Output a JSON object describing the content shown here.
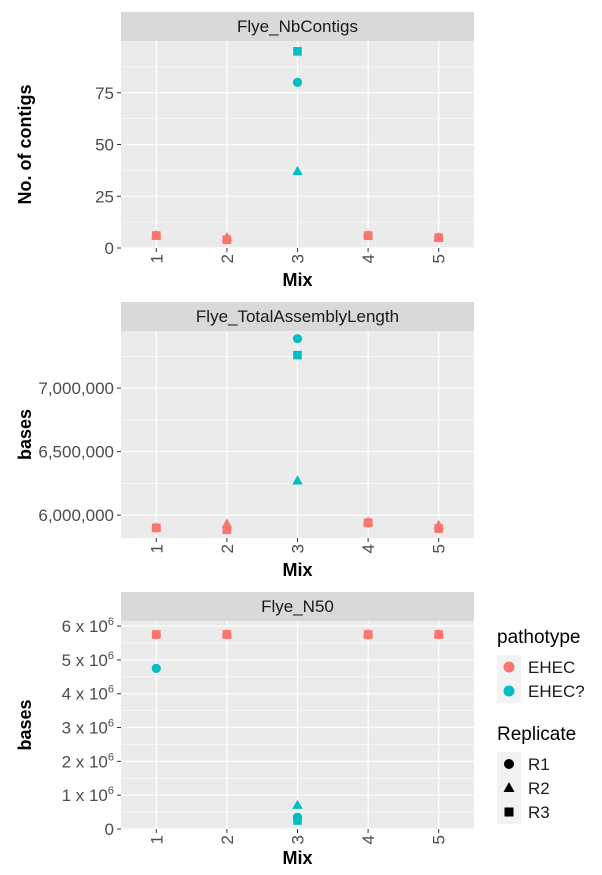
{
  "chart_data": [
    {
      "type": "scatter",
      "title": "Flye_NbContigs",
      "xlabel": "Mix",
      "ylabel": "No. of contigs",
      "x_categories": [
        "1",
        "2",
        "3",
        "4",
        "5"
      ],
      "ylim": [
        0,
        100
      ],
      "y_ticks": [
        0,
        25,
        50,
        75
      ],
      "y_tick_labels": [
        "0",
        "25",
        "50",
        "75"
      ],
      "grid": true,
      "points": [
        {
          "x": "1",
          "y": 6,
          "pathotype": "EHEC",
          "replicate": "R1"
        },
        {
          "x": "1",
          "y": 6,
          "pathotype": "EHEC",
          "replicate": "R2"
        },
        {
          "x": "1",
          "y": 6,
          "pathotype": "EHEC",
          "replicate": "R3"
        },
        {
          "x": "2",
          "y": 4,
          "pathotype": "EHEC",
          "replicate": "R1"
        },
        {
          "x": "2",
          "y": 5,
          "pathotype": "EHEC",
          "replicate": "R2"
        },
        {
          "x": "2",
          "y": 4,
          "pathotype": "EHEC",
          "replicate": "R3"
        },
        {
          "x": "3",
          "y": 80,
          "pathotype": "EHEC?",
          "replicate": "R1"
        },
        {
          "x": "3",
          "y": 37,
          "pathotype": "EHEC?",
          "replicate": "R2"
        },
        {
          "x": "3",
          "y": 95,
          "pathotype": "EHEC?",
          "replicate": "R3"
        },
        {
          "x": "4",
          "y": 6,
          "pathotype": "EHEC",
          "replicate": "R1"
        },
        {
          "x": "4",
          "y": 6,
          "pathotype": "EHEC",
          "replicate": "R2"
        },
        {
          "x": "4",
          "y": 6,
          "pathotype": "EHEC",
          "replicate": "R3"
        },
        {
          "x": "5",
          "y": 5,
          "pathotype": "EHEC",
          "replicate": "R1"
        },
        {
          "x": "5",
          "y": 5,
          "pathotype": "EHEC",
          "replicate": "R2"
        },
        {
          "x": "5",
          "y": 5,
          "pathotype": "EHEC",
          "replicate": "R3"
        }
      ]
    },
    {
      "type": "scatter",
      "title": "Flye_TotalAssemblyLength",
      "xlabel": "Mix",
      "ylabel": "bases",
      "x_categories": [
        "1",
        "2",
        "3",
        "4",
        "5"
      ],
      "ylim": [
        5820000,
        7450000
      ],
      "y_ticks": [
        6000000,
        6500000,
        7000000
      ],
      "y_tick_labels": [
        "6,000,000",
        "6,500,000",
        "7,000,000"
      ],
      "grid": true,
      "points": [
        {
          "x": "1",
          "y": 5900000,
          "pathotype": "EHEC",
          "replicate": "R1"
        },
        {
          "x": "1",
          "y": 5900000,
          "pathotype": "EHEC",
          "replicate": "R2"
        },
        {
          "x": "1",
          "y": 5900000,
          "pathotype": "EHEC",
          "replicate": "R3"
        },
        {
          "x": "2",
          "y": 5885000,
          "pathotype": "EHEC",
          "replicate": "R1"
        },
        {
          "x": "2",
          "y": 5930000,
          "pathotype": "EHEC",
          "replicate": "R2"
        },
        {
          "x": "2",
          "y": 5885000,
          "pathotype": "EHEC",
          "replicate": "R3"
        },
        {
          "x": "3",
          "y": 7390000,
          "pathotype": "EHEC?",
          "replicate": "R1"
        },
        {
          "x": "3",
          "y": 6270000,
          "pathotype": "EHEC?",
          "replicate": "R2"
        },
        {
          "x": "3",
          "y": 7260000,
          "pathotype": "EHEC?",
          "replicate": "R3"
        },
        {
          "x": "4",
          "y": 5940000,
          "pathotype": "EHEC",
          "replicate": "R1"
        },
        {
          "x": "4",
          "y": 5945000,
          "pathotype": "EHEC",
          "replicate": "R2"
        },
        {
          "x": "4",
          "y": 5940000,
          "pathotype": "EHEC",
          "replicate": "R3"
        },
        {
          "x": "5",
          "y": 5895000,
          "pathotype": "EHEC",
          "replicate": "R1"
        },
        {
          "x": "5",
          "y": 5920000,
          "pathotype": "EHEC",
          "replicate": "R2"
        },
        {
          "x": "5",
          "y": 5895000,
          "pathotype": "EHEC",
          "replicate": "R3"
        }
      ]
    },
    {
      "type": "scatter",
      "title": "Flye_N50",
      "xlabel": "Mix",
      "ylabel": "bases",
      "x_categories": [
        "1",
        "2",
        "3",
        "4",
        "5"
      ],
      "ylim": [
        0,
        6150000
      ],
      "y_ticks": [
        0,
        1000000,
        2000000,
        3000000,
        4000000,
        5000000,
        6000000
      ],
      "y_tick_labels": [
        {
          "base": "0",
          "exp": ""
        },
        {
          "base": "1 x 10",
          "exp": "6"
        },
        {
          "base": "2 x 10",
          "exp": "6"
        },
        {
          "base": "3 x 10",
          "exp": "6"
        },
        {
          "base": "4 x 10",
          "exp": "6"
        },
        {
          "base": "5 x 10",
          "exp": "6"
        },
        {
          "base": "6 x 10",
          "exp": "6"
        }
      ],
      "grid": true,
      "points": [
        {
          "x": "1",
          "y": 5750000,
          "pathotype": "EHEC",
          "replicate": "R1"
        },
        {
          "x": "1",
          "y": 4750000,
          "pathotype": "EHEC?",
          "replicate": "R1"
        },
        {
          "x": "1",
          "y": 5750000,
          "pathotype": "EHEC",
          "replicate": "R3"
        },
        {
          "x": "2",
          "y": 5750000,
          "pathotype": "EHEC",
          "replicate": "R1"
        },
        {
          "x": "2",
          "y": 5760000,
          "pathotype": "EHEC",
          "replicate": "R2"
        },
        {
          "x": "2",
          "y": 5750000,
          "pathotype": "EHEC",
          "replicate": "R3"
        },
        {
          "x": "3",
          "y": 350000,
          "pathotype": "EHEC?",
          "replicate": "R1"
        },
        {
          "x": "3",
          "y": 700000,
          "pathotype": "EHEC?",
          "replicate": "R2"
        },
        {
          "x": "3",
          "y": 250000,
          "pathotype": "EHEC?",
          "replicate": "R3"
        },
        {
          "x": "4",
          "y": 5750000,
          "pathotype": "EHEC",
          "replicate": "R1"
        },
        {
          "x": "4",
          "y": 5760000,
          "pathotype": "EHEC",
          "replicate": "R2"
        },
        {
          "x": "4",
          "y": 5750000,
          "pathotype": "EHEC",
          "replicate": "R3"
        },
        {
          "x": "5",
          "y": 5750000,
          "pathotype": "EHEC",
          "replicate": "R1"
        },
        {
          "x": "5",
          "y": 5760000,
          "pathotype": "EHEC",
          "replicate": "R2"
        },
        {
          "x": "5",
          "y": 5750000,
          "pathotype": "EHEC",
          "replicate": "R3"
        }
      ]
    }
  ],
  "legend": {
    "pathotype_title": "pathotype",
    "pathotype_items": [
      {
        "label": "EHEC",
        "color": "#F8766D"
      },
      {
        "label": "EHEC?",
        "color": "#00BFC4"
      }
    ],
    "replicate_title": "Replicate",
    "replicate_items": [
      {
        "label": "R1",
        "shape": "circle"
      },
      {
        "label": "R2",
        "shape": "triangle"
      },
      {
        "label": "R3",
        "shape": "square"
      }
    ]
  },
  "colors": {
    "EHEC": "#F8766D",
    "EHEC?": "#00BFC4",
    "panel_bg": "#EBEBEB",
    "strip_bg": "#D9D9D9",
    "grid": "#FFFFFF"
  }
}
